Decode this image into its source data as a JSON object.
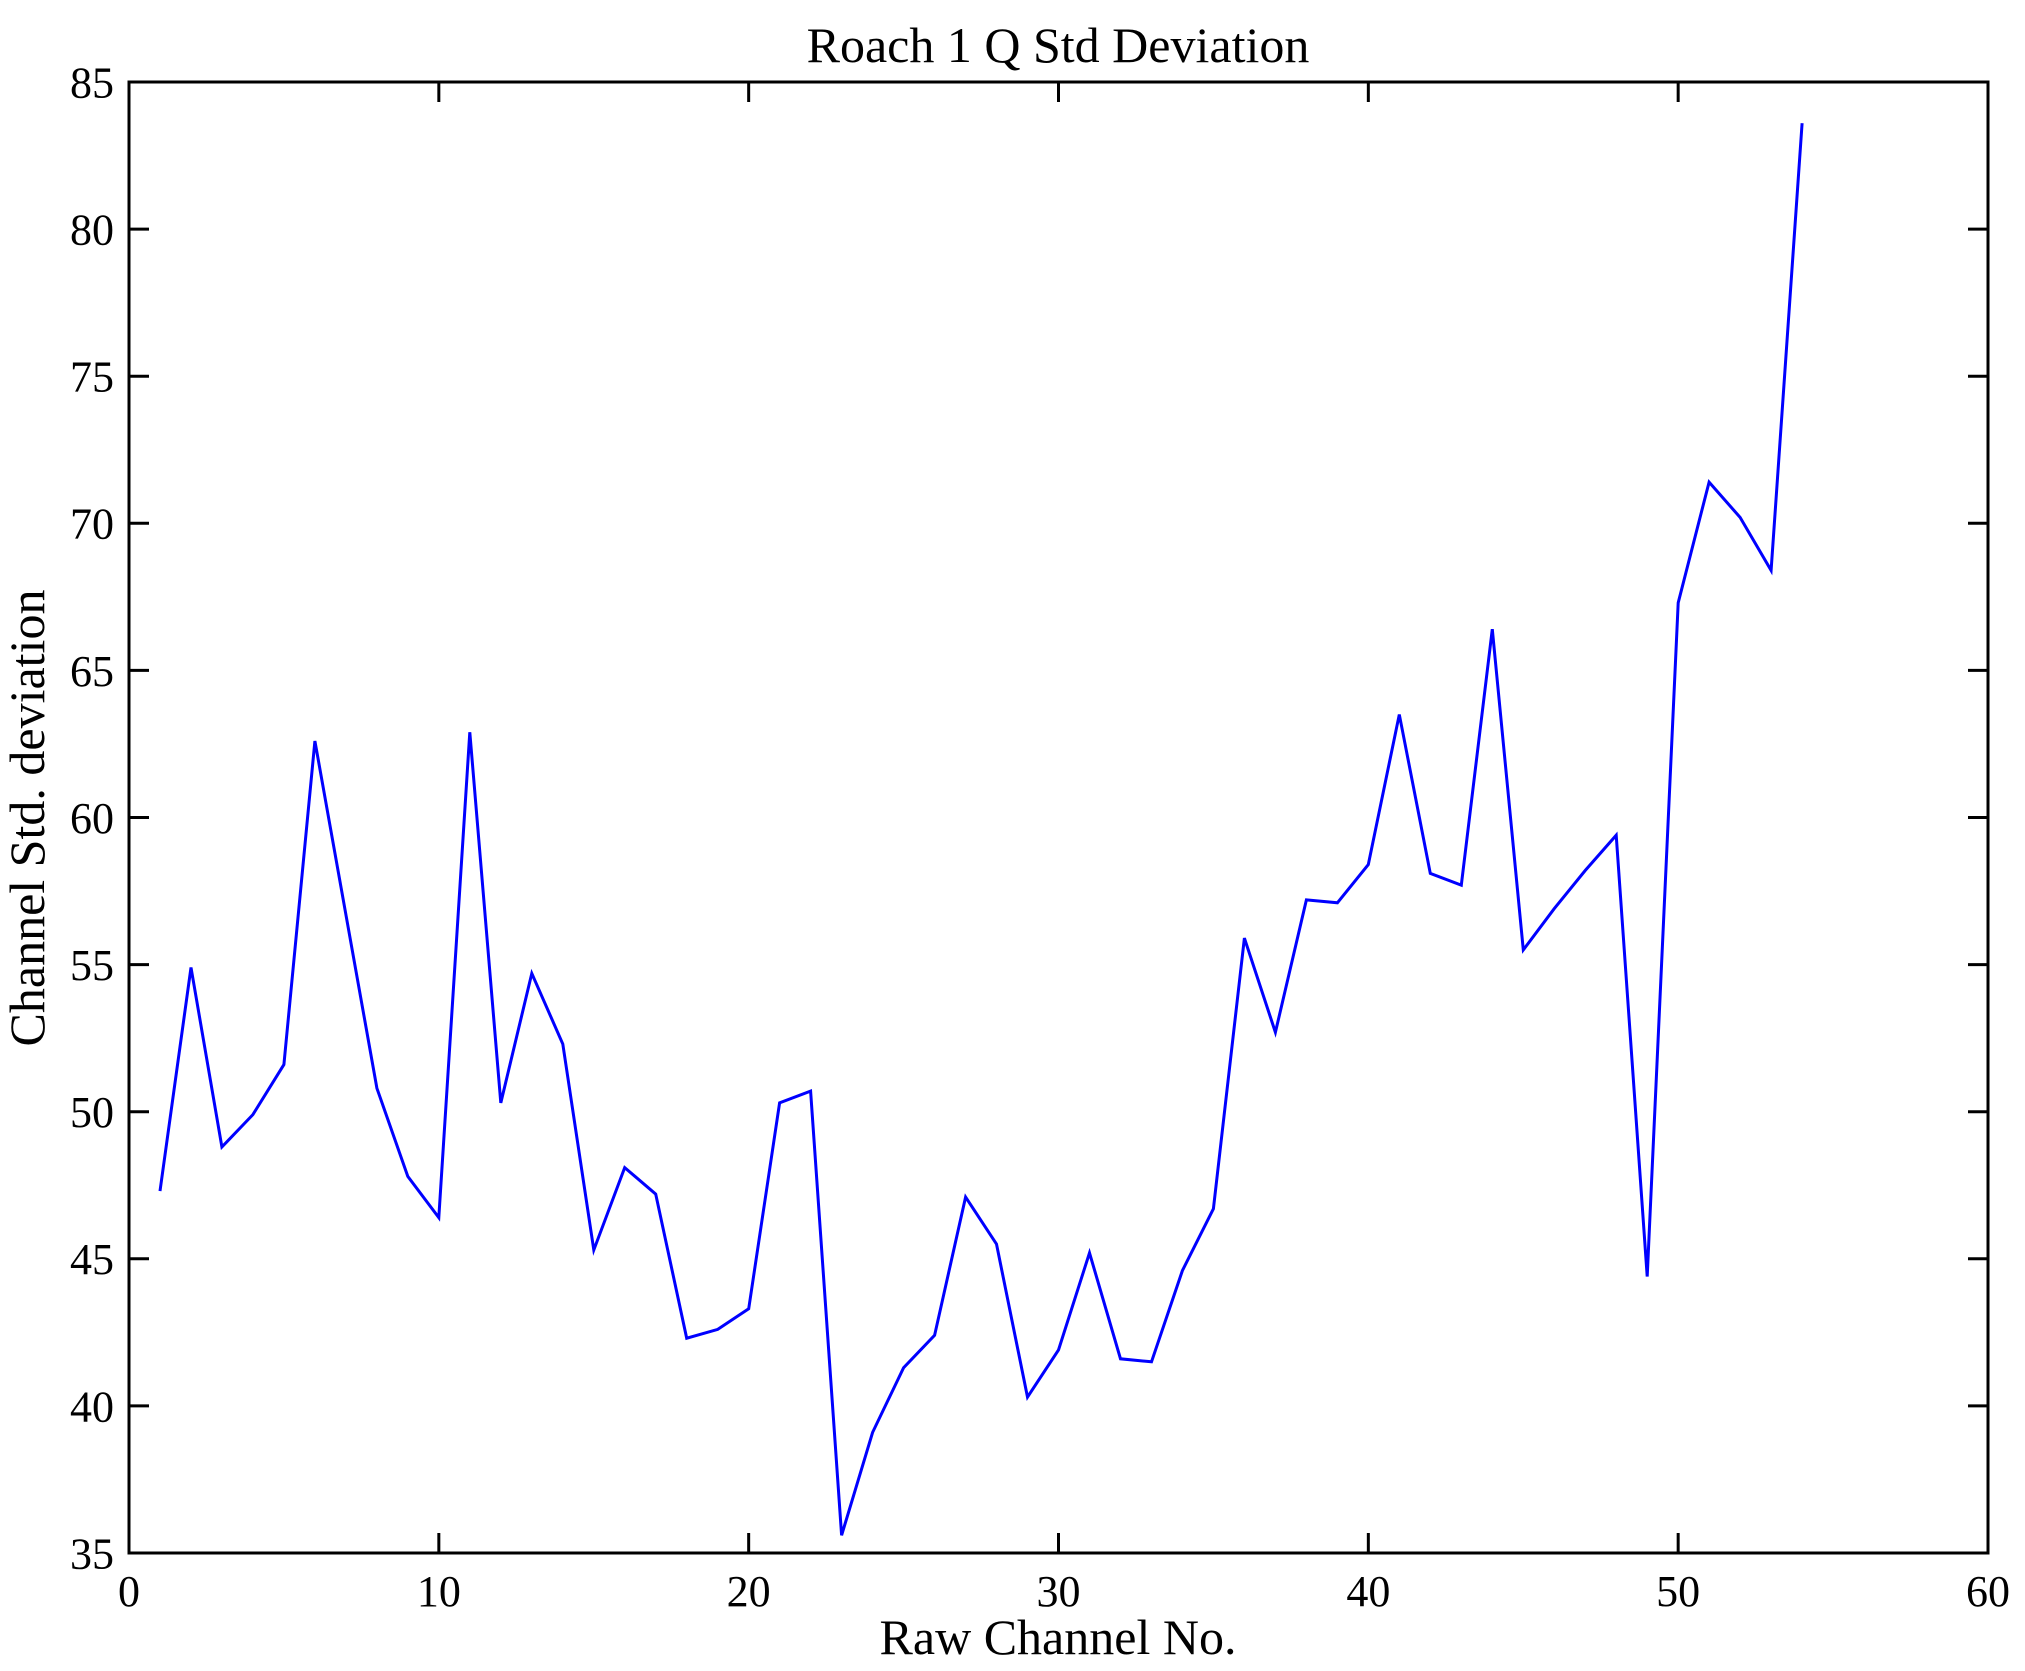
{
  "figure": {
    "background": "#ffffff",
    "axis_color": "#000000"
  },
  "chart_data": {
    "type": "line",
    "title": "Roach 1 Q Std Deviation",
    "xlabel": "Raw Channel No.",
    "ylabel": "Channel Std. deviation",
    "xlim": [
      0,
      60
    ],
    "ylim": [
      35,
      85
    ],
    "xticks": [
      0,
      10,
      20,
      30,
      40,
      50,
      60
    ],
    "yticks": [
      35,
      40,
      45,
      50,
      55,
      60,
      65,
      70,
      75,
      80,
      85
    ],
    "grid": false,
    "legend_position": "none",
    "line_color": "#0000FF",
    "series": [
      {
        "name": "Channel Std deviation",
        "x": [
          1,
          2,
          3,
          4,
          5,
          6,
          7,
          8,
          9,
          10,
          11,
          12,
          13,
          14,
          15,
          16,
          17,
          18,
          19,
          20,
          21,
          22,
          23,
          24,
          25,
          26,
          27,
          28,
          29,
          30,
          31,
          32,
          33,
          34,
          35,
          36,
          37,
          38,
          39,
          40,
          41,
          42,
          43,
          44,
          45,
          46,
          47,
          48,
          49,
          50,
          51,
          52,
          53,
          54
        ],
        "values": [
          47.3,
          54.9,
          48.8,
          49.9,
          51.6,
          62.6,
          56.7,
          50.8,
          47.8,
          46.4,
          62.9,
          50.3,
          54.7,
          52.3,
          45.3,
          48.1,
          47.2,
          42.3,
          42.6,
          43.3,
          50.3,
          50.7,
          35.6,
          39.1,
          41.3,
          42.4,
          47.1,
          45.5,
          40.3,
          41.9,
          45.2,
          41.6,
          41.5,
          44.6,
          46.7,
          55.9,
          52.7,
          57.2,
          57.1,
          58.4,
          63.5,
          58.1,
          57.7,
          66.4,
          55.5,
          56.9,
          58.2,
          59.4,
          44.4,
          67.3,
          71.4,
          70.2,
          68.4,
          83.6
        ]
      }
    ]
  }
}
